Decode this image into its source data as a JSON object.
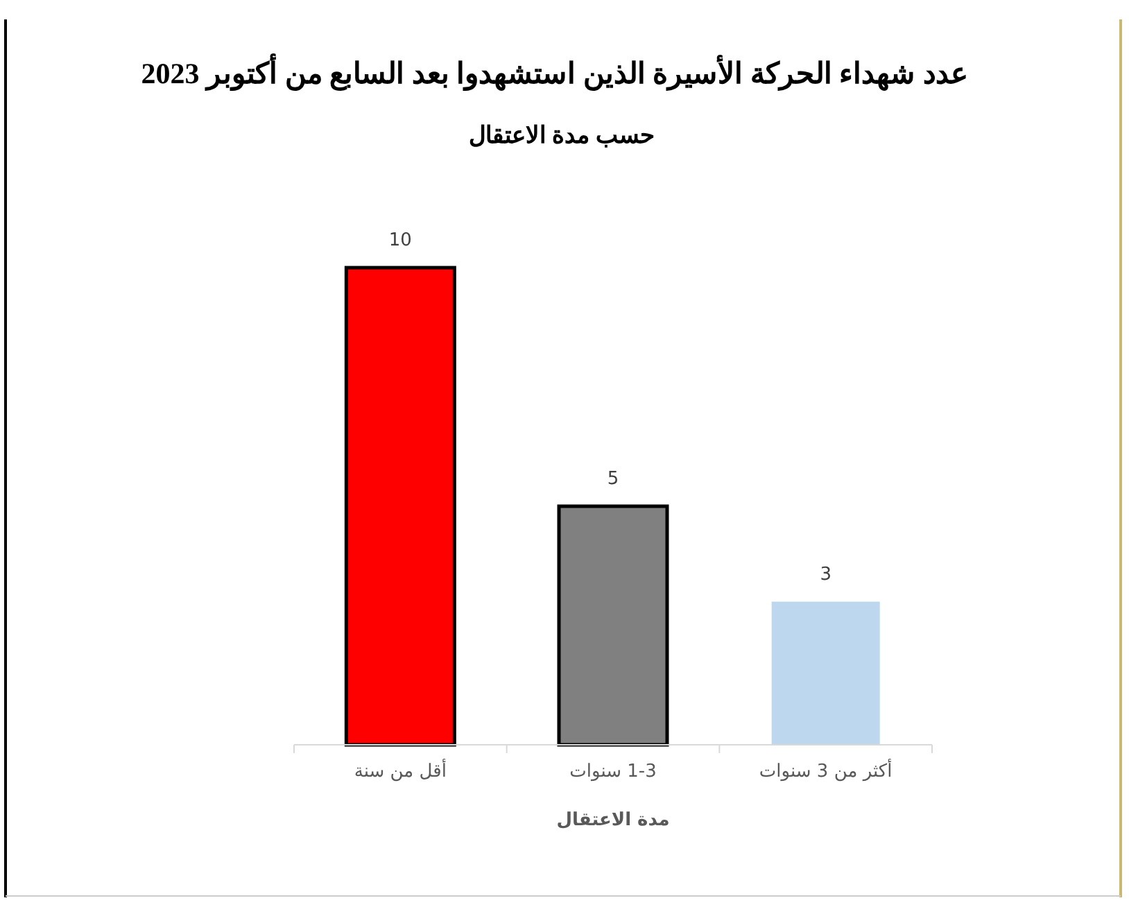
{
  "chart_data": {
    "type": "bar",
    "title": "عدد شهداء الحركة الأسيرة الذين استشهدوا بعد السابع من أكتوبر 2023",
    "subtitle": "حسب مدة الاعتقال",
    "xlabel": "مدة الاعتقال",
    "categories": [
      "أقل من سنة",
      "1-3 سنوات",
      "أكثر من 3 سنوات"
    ],
    "values": [
      10,
      5,
      3
    ],
    "colors": [
      "#ff0000",
      "#808080",
      "#bdd7ee"
    ],
    "data_labels": true
  }
}
